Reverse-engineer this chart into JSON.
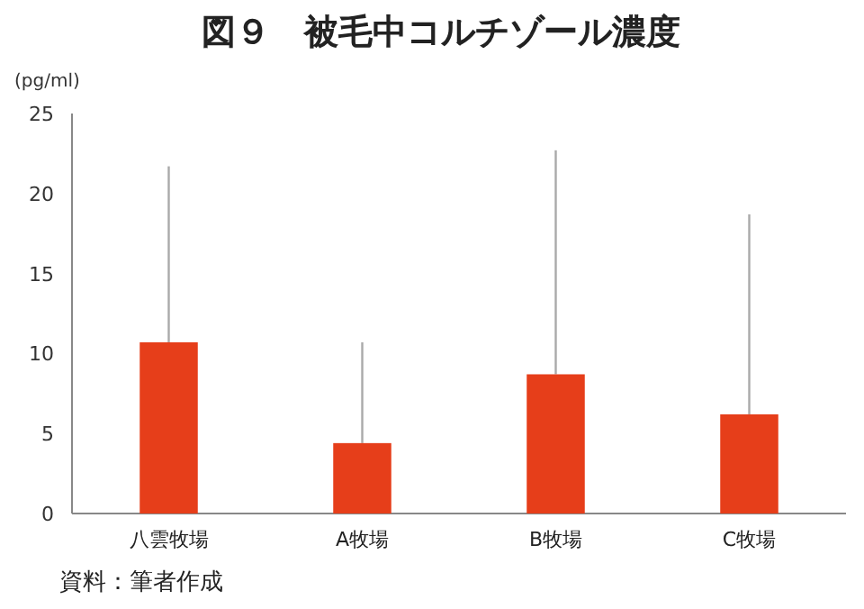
{
  "chart_data": {
    "type": "bar",
    "title": "図９　被毛中コルチゾール濃度",
    "ylabel": "(pg/ml)",
    "categories": [
      "八雲牧場",
      "A牧場",
      "B牧場",
      "C牧場"
    ],
    "values": [
      10.7,
      4.4,
      8.7,
      6.2
    ],
    "errors": [
      [
        10.7,
        21.7
      ],
      [
        4.4,
        10.7
      ],
      [
        8.7,
        22.7
      ],
      [
        6.2,
        18.7
      ]
    ],
    "color": "#e63e1a",
    "ylim": [
      0,
      25
    ],
    "yticks": [
      0,
      5,
      10,
      15,
      20,
      25
    ],
    "annotations": [
      "資料：筆者作成"
    ]
  }
}
